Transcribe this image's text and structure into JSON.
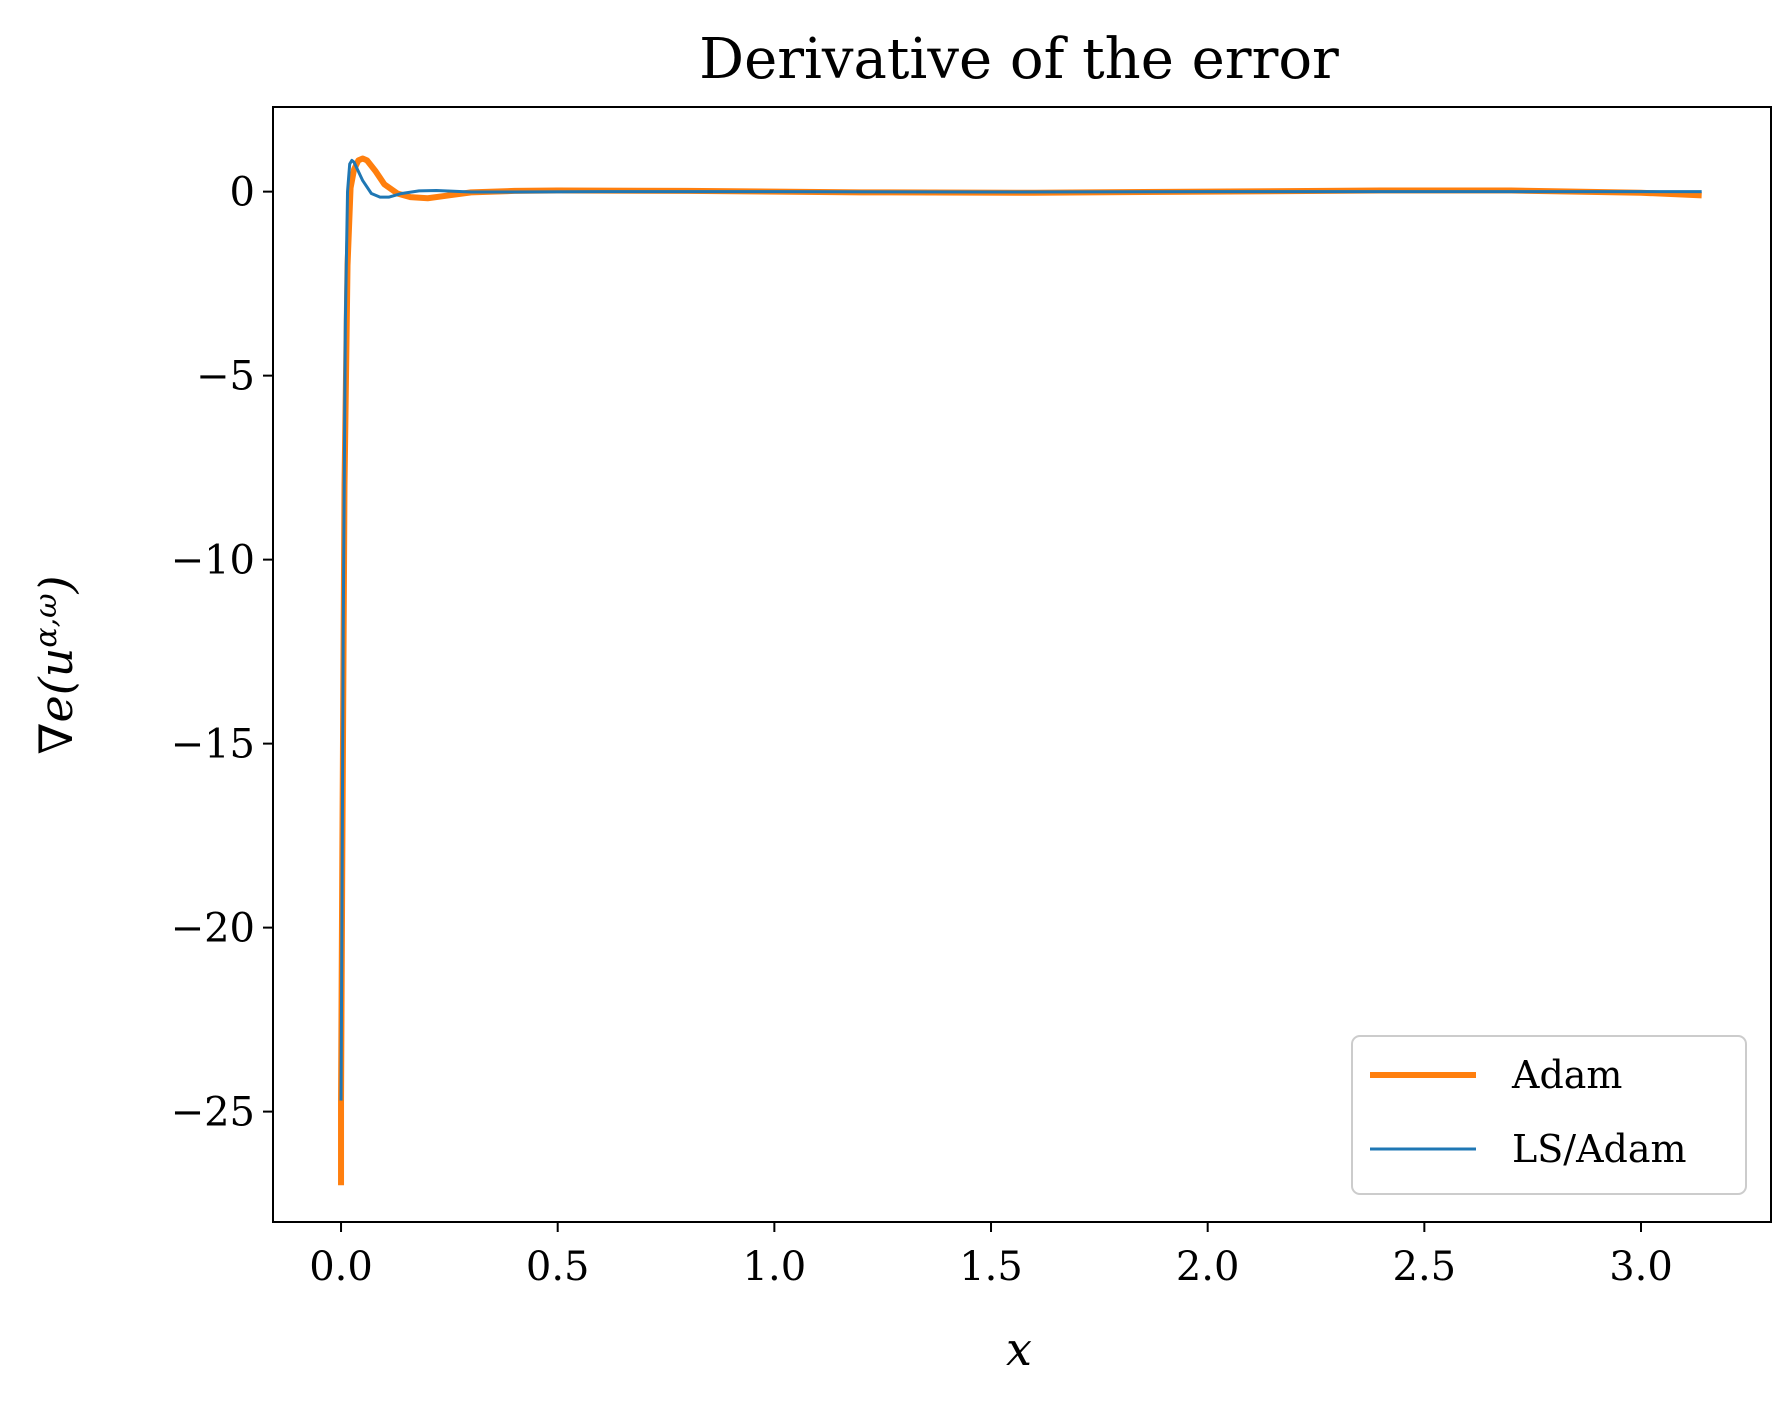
{
  "chart_data": {
    "type": "line",
    "title": "Derivative of the error",
    "xlabel": "x",
    "ylabel": "∇e(u^{α,ω})",
    "xlim": [
      -0.157,
      3.3
    ],
    "ylim": [
      -28.0,
      2.3
    ],
    "xticks": [
      0.0,
      0.5,
      1.0,
      1.5,
      2.0,
      2.5,
      3.0
    ],
    "xtick_labels": [
      "0.0",
      "0.5",
      "1.0",
      "1.5",
      "2.0",
      "2.5",
      "3.0"
    ],
    "yticks": [
      0,
      -5,
      -10,
      -15,
      -20,
      -25
    ],
    "ytick_labels": [
      "0",
      "−5",
      "−10",
      "−15",
      "−20",
      "−25"
    ],
    "grid": false,
    "legend_position": "lower-right",
    "series": [
      {
        "name": "Adam",
        "color": "#ff7f0e",
        "x": [
          0.0,
          0.0,
          0.003,
          0.008,
          0.015,
          0.022,
          0.03,
          0.04,
          0.05,
          0.06,
          0.08,
          0.1,
          0.13,
          0.16,
          0.2,
          0.25,
          0.3,
          0.4,
          0.5,
          0.8,
          1.2,
          1.6,
          2.0,
          2.4,
          2.7,
          3.0,
          3.14
        ],
        "y": [
          -27.0,
          -24.7,
          -18.0,
          -8.0,
          -2.0,
          0.1,
          0.6,
          0.85,
          0.9,
          0.85,
          0.55,
          0.2,
          -0.05,
          -0.15,
          -0.18,
          -0.1,
          -0.02,
          0.02,
          0.03,
          0.02,
          -0.02,
          -0.03,
          0.0,
          0.03,
          0.03,
          -0.03,
          -0.1
        ]
      },
      {
        "name": "LS/Adam",
        "color": "#1f77b4",
        "x": [
          0.0,
          0.002,
          0.005,
          0.01,
          0.015,
          0.02,
          0.025,
          0.03,
          0.04,
          0.05,
          0.07,
          0.09,
          0.11,
          0.14,
          0.18,
          0.22,
          0.26,
          0.3,
          0.4,
          0.6,
          1.0,
          1.5,
          2.0,
          2.5,
          3.0,
          3.14
        ],
        "y": [
          -24.7,
          -20.0,
          -12.0,
          -3.5,
          0.0,
          0.75,
          0.85,
          0.8,
          0.55,
          0.3,
          -0.05,
          -0.15,
          -0.15,
          -0.05,
          0.02,
          0.03,
          0.01,
          -0.01,
          -0.01,
          0.0,
          0.0,
          -0.01,
          0.0,
          0.0,
          0.0,
          0.0
        ]
      }
    ]
  }
}
